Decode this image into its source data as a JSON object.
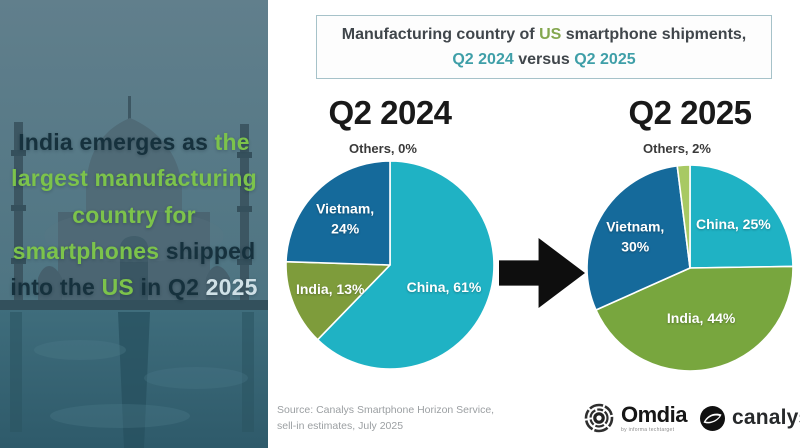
{
  "left_panel": {
    "background": "taj-mahal-photo-teal-tint",
    "headline_spans": [
      {
        "text": "India emerges as ",
        "style": "dark"
      },
      {
        "text": "the largest manufacturing country for smartphones",
        "style": "green"
      },
      {
        "text": " shipped into the ",
        "style": "dark"
      },
      {
        "text": "US",
        "style": "green"
      },
      {
        "text": " in Q2 ",
        "style": "dark"
      },
      {
        "text": "2025",
        "style": "light"
      }
    ]
  },
  "header": {
    "line1_spans": [
      {
        "text": "Manufacturing country of ",
        "style": "dark"
      },
      {
        "text": "US",
        "style": "green"
      },
      {
        "text": " smartphone shipments,",
        "style": "dark"
      }
    ],
    "line2_spans": [
      {
        "text": "Q2 2024",
        "style": "teal"
      },
      {
        "text": " versus ",
        "style": "dark"
      },
      {
        "text": "Q2 2025",
        "style": "teal"
      }
    ]
  },
  "chart_data": [
    {
      "type": "pie",
      "title": "Q2 2024",
      "start_angle_deg": 0,
      "direction": "clockwise",
      "slices": [
        {
          "label": "China",
          "value": 61,
          "color": "#1fb2c4",
          "label_r": 0.56
        },
        {
          "label": "India",
          "value": 13,
          "color": "#7e9c3b",
          "label_r": 0.62
        },
        {
          "label": "Vietnam",
          "value": 24,
          "color": "#156a9b",
          "label_r": 0.62,
          "wrap": true
        },
        {
          "label": "Others",
          "value": 0,
          "color": "#a8c963",
          "outside": true
        }
      ]
    },
    {
      "type": "pie",
      "title": "Q2 2025",
      "start_angle_deg": 0,
      "direction": "clockwise",
      "slices": [
        {
          "label": "China",
          "value": 25,
          "color": "#1fb2c4",
          "label_r": 0.6
        },
        {
          "label": "India",
          "value": 44,
          "color": "#78a63e",
          "label_r": 0.5
        },
        {
          "label": "Vietnam",
          "value": 30,
          "color": "#156a9b",
          "label_r": 0.61,
          "wrap": true
        },
        {
          "label": "Others",
          "value": 2,
          "color": "#a8c963",
          "outside": true
        }
      ]
    }
  ],
  "arrow": {
    "direction": "right",
    "color": "#0e0e0e"
  },
  "source": {
    "line1": "Source: Canalys Smartphone Horizon Service,",
    "line2": "sell-in estimates, July 2025"
  },
  "footer_logos": {
    "omdia": {
      "name": "Omdia",
      "tagline": "by informa techtarget"
    },
    "canalys": {
      "name": "canalys"
    }
  },
  "colors": {
    "accent_teal": "#3f9fa8",
    "accent_green": "#84a74f",
    "headline_green": "#7cc34b",
    "panel_teal": "#3f6d7c"
  }
}
